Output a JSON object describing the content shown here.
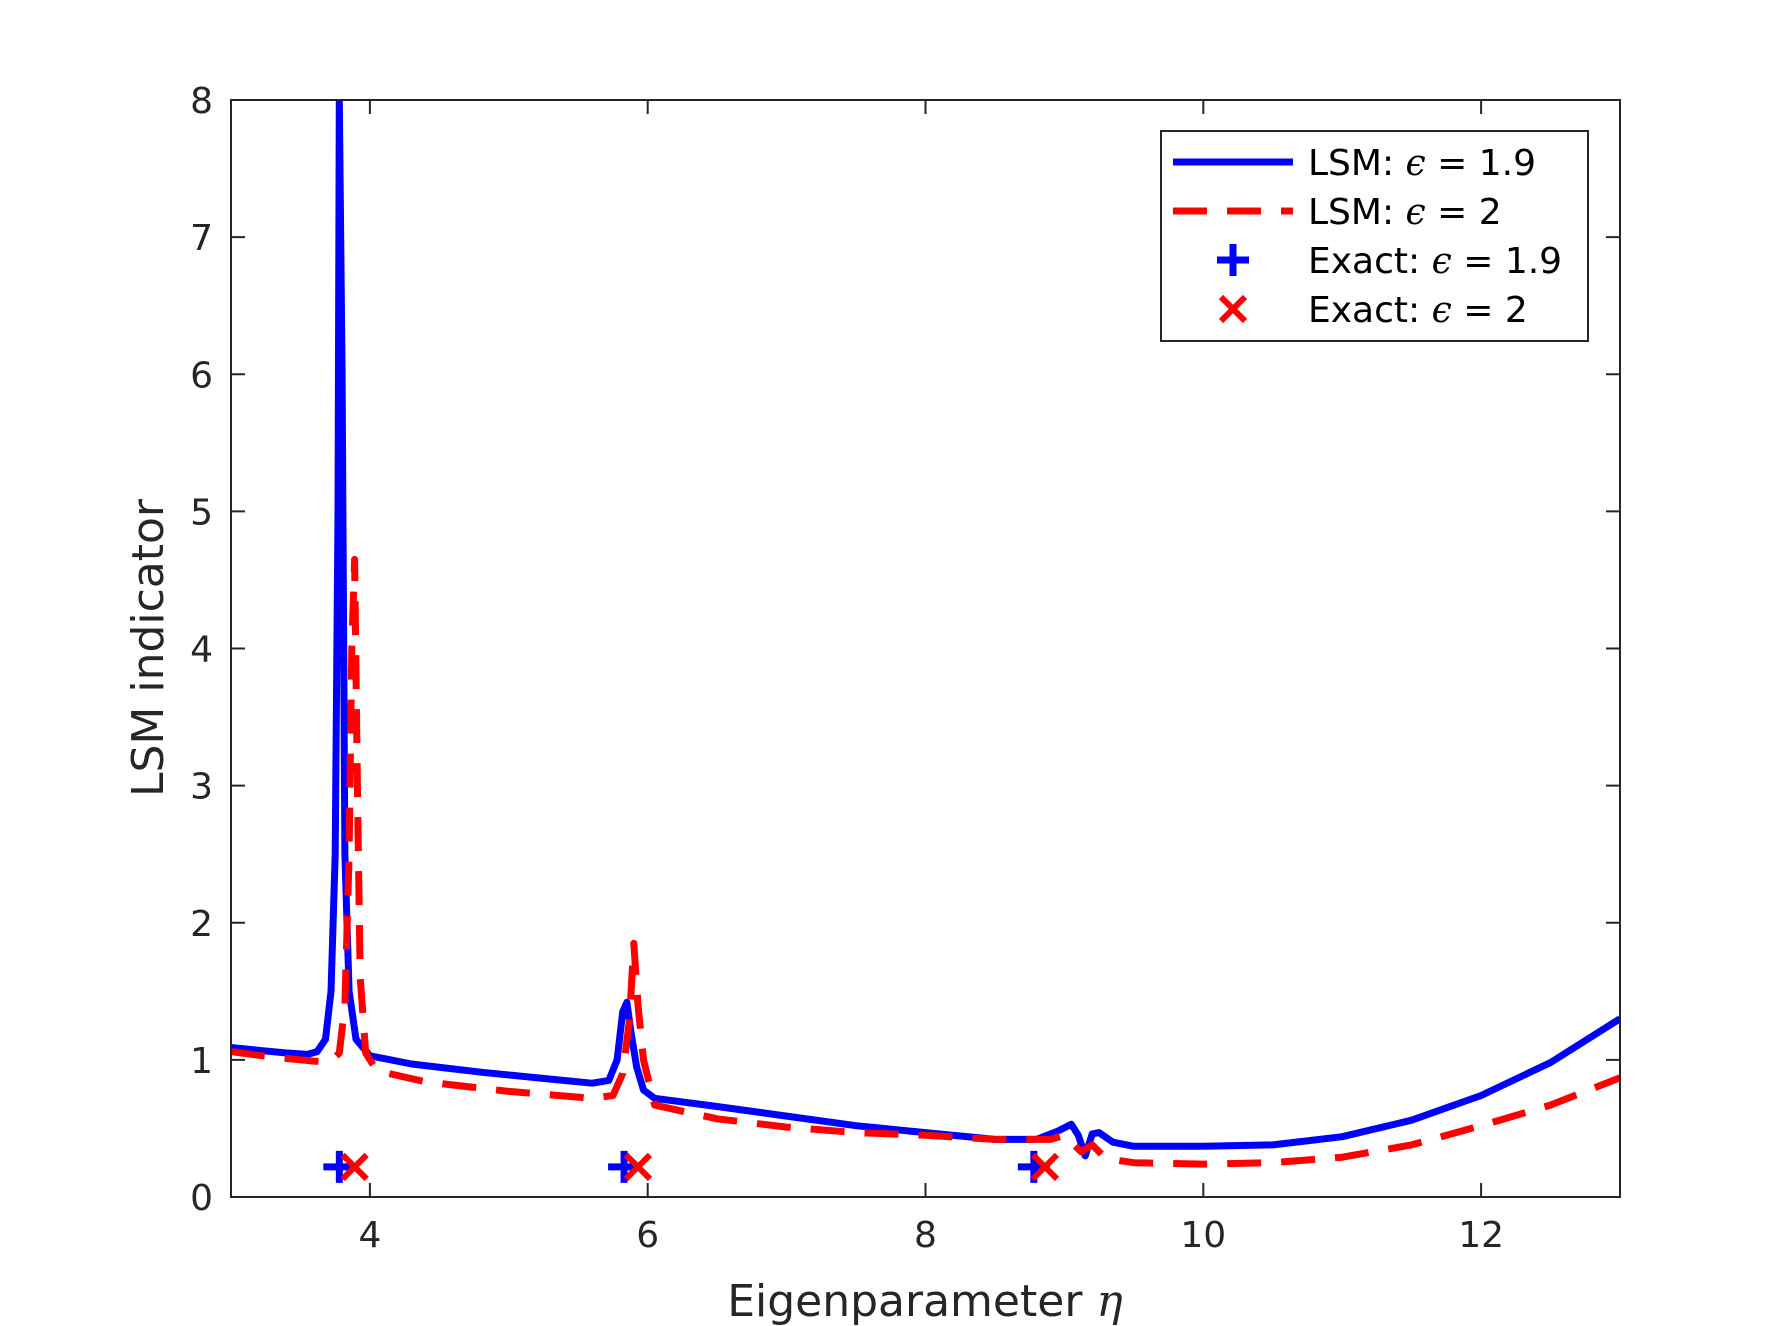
{
  "chart_data": {
    "type": "line",
    "xlabel": "Eigenparameter",
    "xlabel_symbol": "η",
    "ylabel": "LSM indicator",
    "xlim": [
      3,
      13
    ],
    "ylim": [
      0,
      8
    ],
    "xticks": [
      4,
      6,
      8,
      10,
      12
    ],
    "yticks": [
      0,
      1,
      2,
      3,
      4,
      5,
      6,
      7,
      8
    ],
    "grid": false,
    "legend_position": "top-right",
    "series": [
      {
        "name_prefix": "LSM:",
        "name_symbol": "ϵ",
        "name_suffix": "= 1.9",
        "style": "solid",
        "color": "#0000ff",
        "points": [
          [
            3.0,
            1.09
          ],
          [
            3.2,
            1.07
          ],
          [
            3.4,
            1.05
          ],
          [
            3.55,
            1.04
          ],
          [
            3.62,
            1.06
          ],
          [
            3.68,
            1.15
          ],
          [
            3.72,
            1.5
          ],
          [
            3.75,
            2.5
          ],
          [
            3.77,
            5.0
          ],
          [
            3.78,
            8.0
          ],
          [
            3.8,
            6.0
          ],
          [
            3.82,
            2.5
          ],
          [
            3.85,
            1.5
          ],
          [
            3.9,
            1.15
          ],
          [
            4.0,
            1.03
          ],
          [
            4.3,
            0.97
          ],
          [
            4.8,
            0.91
          ],
          [
            5.3,
            0.86
          ],
          [
            5.6,
            0.83
          ],
          [
            5.72,
            0.85
          ],
          [
            5.78,
            1.0
          ],
          [
            5.82,
            1.35
          ],
          [
            5.85,
            1.42
          ],
          [
            5.88,
            1.2
          ],
          [
            5.92,
            0.95
          ],
          [
            5.97,
            0.78
          ],
          [
            6.05,
            0.72
          ],
          [
            6.5,
            0.66
          ],
          [
            7.0,
            0.59
          ],
          [
            7.5,
            0.52
          ],
          [
            8.0,
            0.47
          ],
          [
            8.5,
            0.42
          ],
          [
            8.8,
            0.42
          ],
          [
            8.95,
            0.48
          ],
          [
            9.05,
            0.53
          ],
          [
            9.1,
            0.45
          ],
          [
            9.15,
            0.3
          ],
          [
            9.2,
            0.46
          ],
          [
            9.25,
            0.47
          ],
          [
            9.35,
            0.4
          ],
          [
            9.5,
            0.37
          ],
          [
            10.0,
            0.37
          ],
          [
            10.5,
            0.38
          ],
          [
            11.0,
            0.44
          ],
          [
            11.5,
            0.56
          ],
          [
            12.0,
            0.74
          ],
          [
            12.5,
            0.98
          ],
          [
            13.0,
            1.3
          ]
        ]
      },
      {
        "name_prefix": "LSM:",
        "name_symbol": "ϵ",
        "name_suffix": "= 2",
        "style": "dashed",
        "color": "#ff0000",
        "points": [
          [
            3.0,
            1.06
          ],
          [
            3.3,
            1.02
          ],
          [
            3.6,
            0.99
          ],
          [
            3.72,
            0.99
          ],
          [
            3.78,
            1.05
          ],
          [
            3.82,
            1.4
          ],
          [
            3.85,
            2.5
          ],
          [
            3.87,
            4.0
          ],
          [
            3.89,
            4.65
          ],
          [
            3.91,
            3.0
          ],
          [
            3.93,
            1.6
          ],
          [
            3.97,
            1.05
          ],
          [
            4.05,
            0.92
          ],
          [
            4.4,
            0.84
          ],
          [
            5.0,
            0.77
          ],
          [
            5.6,
            0.72
          ],
          [
            5.75,
            0.74
          ],
          [
            5.82,
            0.9
          ],
          [
            5.87,
            1.3
          ],
          [
            5.9,
            1.85
          ],
          [
            5.93,
            1.4
          ],
          [
            5.97,
            1.0
          ],
          [
            6.05,
            0.67
          ],
          [
            6.5,
            0.57
          ],
          [
            7.0,
            0.51
          ],
          [
            7.5,
            0.47
          ],
          [
            8.0,
            0.45
          ],
          [
            8.5,
            0.42
          ],
          [
            8.9,
            0.42
          ],
          [
            9.0,
            0.45
          ],
          [
            9.05,
            0.4
          ],
          [
            9.12,
            0.33
          ],
          [
            9.2,
            0.38
          ],
          [
            9.3,
            0.28
          ],
          [
            9.5,
            0.25
          ],
          [
            10.0,
            0.24
          ],
          [
            10.5,
            0.25
          ],
          [
            11.0,
            0.29
          ],
          [
            11.5,
            0.38
          ],
          [
            12.0,
            0.52
          ],
          [
            12.5,
            0.67
          ],
          [
            13.0,
            0.87
          ]
        ]
      }
    ],
    "markers": [
      {
        "name_prefix": "Exact:",
        "name_symbol": "ϵ",
        "name_suffix": "= 1.9",
        "shape": "plus",
        "color": "#0000ff",
        "points": [
          [
            3.78,
            0.22
          ],
          [
            5.83,
            0.22
          ],
          [
            8.78,
            0.22
          ]
        ]
      },
      {
        "name_prefix": "Exact:",
        "name_symbol": "ϵ",
        "name_suffix": "= 2",
        "shape": "x",
        "color": "#ff0000",
        "points": [
          [
            3.89,
            0.22
          ],
          [
            5.93,
            0.22
          ],
          [
            8.86,
            0.22
          ]
        ]
      }
    ]
  }
}
